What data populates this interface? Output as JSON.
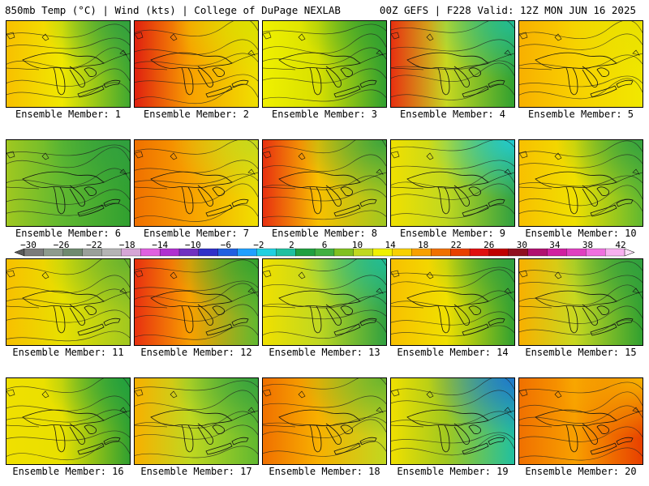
{
  "header": {
    "left": "850mb Temp (°C) | Wind (kts) | College of DuPage NEXLAB",
    "right": "00Z GEFS | F228 Valid: 12Z MON JUN 16 2025"
  },
  "colorbar": {
    "labels": [
      "−30",
      "−26",
      "−22",
      "−18",
      "−14",
      "−10",
      "−6",
      "−2",
      "2",
      "6",
      "10",
      "14",
      "18",
      "22",
      "26",
      "30",
      "34",
      "38",
      "42"
    ],
    "colors": [
      "#7b7b7b",
      "#8e9b8e",
      "#6f8a6f",
      "#9aa09a",
      "#b4b4b4",
      "#d6a6d6",
      "#e060e0",
      "#b030d0",
      "#7030c0",
      "#3030c8",
      "#2060e0",
      "#20a0ff",
      "#20d0e0",
      "#20c0a0",
      "#20a040",
      "#40b040",
      "#80c020",
      "#c0d820",
      "#f0f000",
      "#f8d000",
      "#f8a000",
      "#f07000",
      "#e84000",
      "#e01010",
      "#c00000",
      "#901020",
      "#b01070",
      "#d020a0",
      "#e040c0",
      "#f070e0",
      "#f8b0f0"
    ]
  },
  "panels": [
    {
      "caption": "Ensemble Member: 1"
    },
    {
      "caption": "Ensemble Member: 2"
    },
    {
      "caption": "Ensemble Member: 3"
    },
    {
      "caption": "Ensemble Member: 4"
    },
    {
      "caption": "Ensemble Member: 5"
    },
    {
      "caption": "Ensemble Member: 6"
    },
    {
      "caption": "Ensemble Member: 7"
    },
    {
      "caption": "Ensemble Member: 8"
    },
    {
      "caption": "Ensemble Member: 9"
    },
    {
      "caption": "Ensemble Member: 10"
    },
    {
      "caption": "Ensemble Member: 11"
    },
    {
      "caption": "Ensemble Member: 12"
    },
    {
      "caption": "Ensemble Member: 13"
    },
    {
      "caption": "Ensemble Member: 14"
    },
    {
      "caption": "Ensemble Member: 15"
    },
    {
      "caption": "Ensemble Member: 16"
    },
    {
      "caption": "Ensemble Member: 17"
    },
    {
      "caption": "Ensemble Member: 18"
    },
    {
      "caption": "Ensemble Member: 19"
    },
    {
      "caption": "Ensemble Member: 20"
    }
  ],
  "fields": [
    {
      "base": "#f0e800",
      "west": "#f8c000",
      "east": "#40a830",
      "ne": "#30a040"
    },
    {
      "base": "#f8a000",
      "west": "#e02010",
      "east": "#f0e000",
      "ne": "#d8e000"
    },
    {
      "base": "#d8e000",
      "west": "#f0f000",
      "east": "#30a030",
      "ne": "#30a030"
    },
    {
      "base": "#c8d820",
      "west": "#e83010",
      "east": "#30a030",
      "ne": "#20c0a0"
    },
    {
      "base": "#f8d000",
      "west": "#f8b000",
      "east": "#f0e800",
      "ne": "#e8e000"
    },
    {
      "base": "#60b830",
      "west": "#a0c820",
      "east": "#30a030",
      "ne": "#30a040"
    },
    {
      "base": "#f8a000",
      "west": "#f07000",
      "east": "#f0e000",
      "ne": "#c0d820"
    },
    {
      "base": "#f8c000",
      "west": "#e83010",
      "east": "#a0c820",
      "ne": "#30a040"
    },
    {
      "base": "#c0d820",
      "west": "#f0e000",
      "east": "#30a040",
      "ne": "#20d0e0"
    },
    {
      "base": "#f0e000",
      "west": "#f8c000",
      "east": "#60b830",
      "ne": "#30a040"
    },
    {
      "base": "#e8e000",
      "west": "#f8c000",
      "east": "#a0c820",
      "ne": "#60b030"
    },
    {
      "base": "#f8a000",
      "west": "#e83010",
      "east": "#60b830",
      "ne": "#30a030"
    },
    {
      "base": "#c0d820",
      "west": "#f0e000",
      "east": "#30a040",
      "ne": "#20c0a0"
    },
    {
      "base": "#f0e000",
      "west": "#f8c000",
      "east": "#30a030",
      "ne": "#30a040"
    },
    {
      "base": "#c8d820",
      "west": "#f8b000",
      "east": "#30a030",
      "ne": "#30a040"
    },
    {
      "base": "#e8e000",
      "west": "#f0e000",
      "east": "#30a030",
      "ne": "#20a040"
    },
    {
      "base": "#c0d820",
      "west": "#f8b000",
      "east": "#60b830",
      "ne": "#30a040"
    },
    {
      "base": "#f8b000",
      "west": "#f07000",
      "east": "#c0d820",
      "ne": "#60b030"
    },
    {
      "base": "#a0c820",
      "west": "#f0e000",
      "east": "#20c0a0",
      "ne": "#2070d0"
    },
    {
      "base": "#f8a000",
      "west": "#f07000",
      "east": "#e84000",
      "ne": "#f8c000"
    }
  ]
}
